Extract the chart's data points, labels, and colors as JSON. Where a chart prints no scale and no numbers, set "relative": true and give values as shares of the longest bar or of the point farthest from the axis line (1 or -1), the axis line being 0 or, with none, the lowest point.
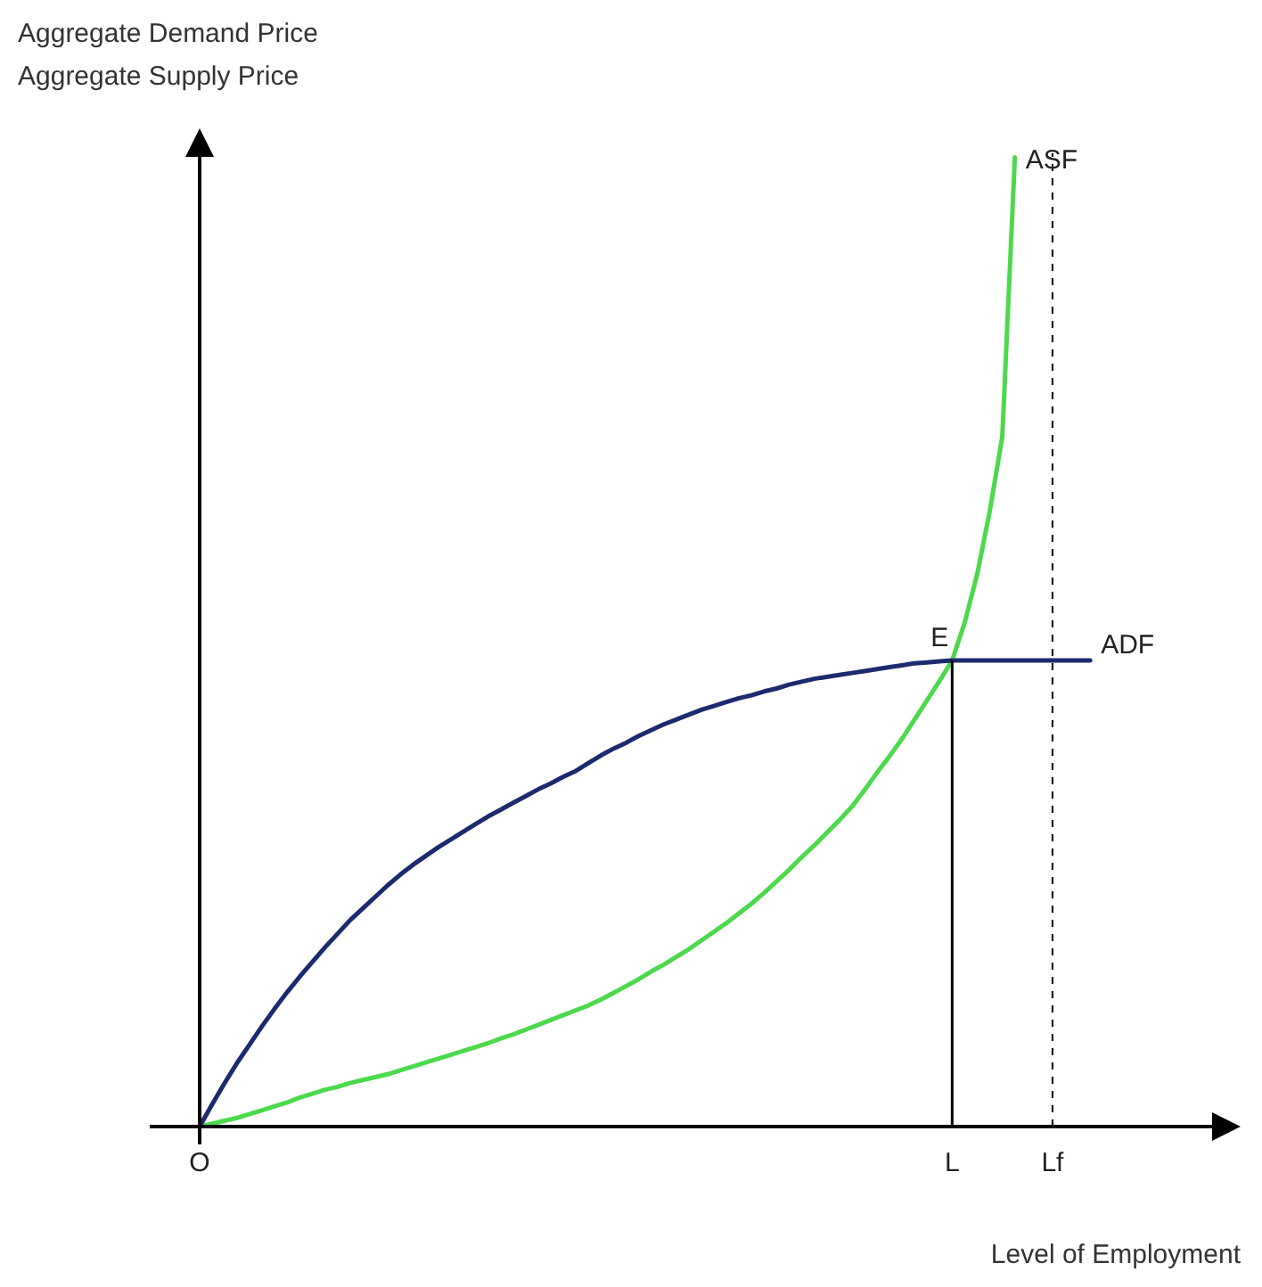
{
  "chart_data": {
    "type": "line",
    "relative": true,
    "xlabel": "Level of Employment",
    "categories": [
      "O",
      null,
      null,
      null,
      null,
      null,
      null,
      null,
      null,
      null,
      null,
      null,
      null,
      null,
      null,
      null,
      null,
      null,
      null,
      null,
      null,
      null,
      null,
      null,
      null,
      null,
      null,
      null,
      null,
      null,
      null,
      null,
      null,
      null,
      null,
      null,
      null,
      null,
      null,
      null,
      null,
      null,
      null,
      null,
      null,
      null,
      null,
      null,
      null,
      null,
      null,
      null,
      null,
      null,
      null,
      null,
      null,
      null,
      null,
      null,
      "L",
      null,
      null,
      null,
      null,
      null,
      null,
      null,
      "Lf",
      null,
      null,
      null,
      null,
      null,
      null,
      null,
      null,
      null,
      null,
      null,
      null,
      null,
      null,
      null
    ],
    "series": [
      {
        "color": "#1c2a6e",
        "values": [
          0,
          0.023,
          0.045,
          0.066,
          0.085,
          0.104,
          0.122,
          0.139,
          0.155,
          0.17,
          0.185,
          0.199,
          0.213,
          0.225,
          0.237,
          0.249,
          0.26,
          0.27,
          0.279,
          0.288,
          0.296,
          0.304,
          0.312,
          0.32,
          0.327,
          0.334,
          0.341,
          0.348,
          0.354,
          0.361,
          0.367,
          0.375,
          0.383,
          0.39,
          0.396,
          0.403,
          0.409,
          0.415,
          0.42,
          0.425,
          0.43,
          0.434,
          0.438,
          0.442,
          0.445,
          0.449,
          0.452,
          0.456,
          0.459,
          0.462,
          0.464,
          0.466,
          0.468,
          0.47,
          0.472,
          0.474,
          0.476,
          0.478,
          0.479,
          0.48,
          0.481,
          0.481,
          0.481,
          0.481,
          0.481,
          0.481,
          0.481,
          0.481,
          0.481,
          0.481,
          0.481,
          0.481,
          null,
          null,
          null,
          null,
          null,
          null,
          null,
          null,
          null,
          null,
          null,
          null
        ]
      },
      {
        "color": "#4cd94c",
        "values": [
          0,
          0.003,
          0.006,
          0.009,
          0.013,
          0.017,
          0.021,
          0.025,
          0.03,
          0.034,
          0.038,
          0.041,
          0.045,
          0.048,
          0.051,
          0.054,
          0.058,
          0.062,
          0.066,
          0.07,
          0.074,
          0.078,
          0.082,
          0.086,
          0.091,
          0.095,
          0.1,
          0.105,
          0.11,
          0.115,
          0.12,
          0.125,
          0.131,
          0.138,
          0.145,
          0.152,
          0.16,
          0.167,
          0.175,
          0.183,
          0.192,
          0.201,
          0.21,
          0.22,
          0.23,
          0.241,
          0.253,
          0.265,
          0.278,
          0.29,
          0.303,
          0.316,
          0.33,
          0.347,
          0.365,
          0.382,
          0.4,
          0.42,
          0.44,
          0.46,
          0.481,
          0.52,
          0.57,
          0.635,
          0.712,
          1,
          null,
          null,
          null,
          null,
          null,
          null,
          null,
          null,
          null,
          null,
          null,
          null,
          null,
          null,
          null,
          null,
          null,
          null
        ]
      }
    ],
    "ref_lines": [
      {
        "axis": "x",
        "value": "L",
        "color": "#000000",
        "line_style": "solid"
      },
      {
        "axis": "x",
        "value": "Lf",
        "color": "#000000",
        "line_style": "dashed"
      }
    ],
    "annotations": [
      {
        "text": "E",
        "x": "L",
        "y": 0.481
      },
      "ADF",
      "ASF",
      "Aggregate Demand Price",
      "Aggregate Supply Price"
    ],
    "legend": false,
    "grid": false,
    "marker": "none",
    "line_style": "solid"
  }
}
